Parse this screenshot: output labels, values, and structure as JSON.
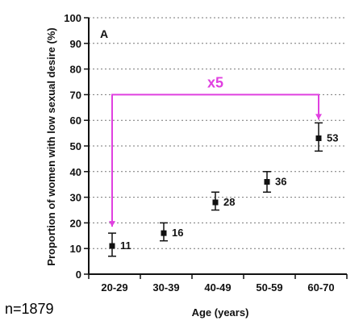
{
  "chart_data": {
    "type": "scatter",
    "panel_label": "A",
    "xlabel": "Age (years)",
    "ylabel": "Proportion of women with low sexual desire (%)",
    "categories": [
      "20-29",
      "30-39",
      "40-49",
      "50-59",
      "60-70"
    ],
    "values": [
      11,
      16,
      28,
      36,
      53
    ],
    "value_labels": [
      "11",
      "16",
      "28",
      "36",
      "53"
    ],
    "error_low": [
      7,
      13,
      25,
      32,
      48
    ],
    "error_high": [
      16,
      20,
      32,
      40,
      59
    ],
    "ylim": [
      0,
      100
    ],
    "yticks": [
      "0",
      "10",
      "20",
      "30",
      "40",
      "50",
      "60",
      "70",
      "80",
      "90",
      "100"
    ],
    "grid": true,
    "annotation": {
      "text": "x5",
      "from_category": "20-29",
      "to_category": "60-70",
      "bracket_level": 70,
      "color": "#e040e0"
    },
    "marker_color": "#111111"
  },
  "footnote": "n=1879"
}
